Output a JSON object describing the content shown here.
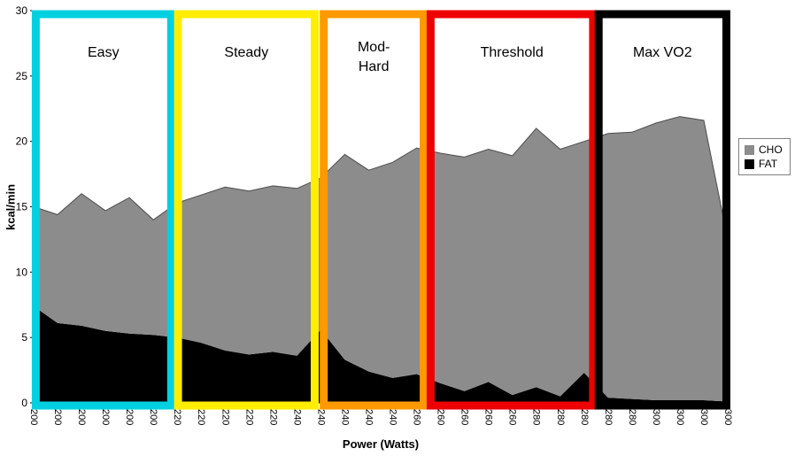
{
  "chart_data": {
    "type": "area",
    "stacked": true,
    "title": "",
    "xlabel": "Power (Watts)",
    "ylabel": "kcal/min",
    "ylim": [
      0,
      30
    ],
    "yticks": [
      0,
      5,
      10,
      15,
      20,
      25,
      30
    ],
    "grid": false,
    "categories": [
      "200",
      "200",
      "200",
      "200",
      "200",
      "200",
      "220",
      "220",
      "220",
      "220",
      "220",
      "240",
      "240",
      "240",
      "240",
      "240",
      "260",
      "260",
      "260",
      "260",
      "260",
      "280",
      "280",
      "280",
      "280",
      "280",
      "300",
      "300",
      "300",
      "300"
    ],
    "series": [
      {
        "name": "FAT",
        "color": "#000000",
        "values": [
          7.4,
          6.1,
          5.9,
          5.5,
          5.3,
          5.2,
          5.0,
          4.6,
          4.0,
          3.7,
          3.9,
          3.6,
          5.6,
          3.3,
          2.4,
          1.9,
          2.2,
          1.5,
          0.9,
          1.6,
          0.6,
          1.2,
          0.5,
          2.3,
          0.4,
          0.3,
          0.2,
          0.2,
          0.2,
          0.1
        ]
      },
      {
        "name": "CHO",
        "color": "#8c8c8c",
        "values": [
          7.6,
          8.3,
          10.1,
          9.2,
          10.4,
          8.8,
          10.3,
          11.3,
          12.5,
          12.5,
          12.7,
          12.8,
          11.6,
          15.7,
          15.4,
          16.5,
          17.3,
          17.6,
          17.9,
          17.8,
          18.3,
          19.8,
          18.9,
          17.7,
          20.2,
          20.4,
          21.2,
          21.7,
          21.4,
          12.4
        ]
      }
    ],
    "legend": {
      "position": "right",
      "items": [
        {
          "label": "CHO",
          "color": "#8c8c8c"
        },
        {
          "label": "FAT",
          "color": "#000000"
        }
      ]
    },
    "zones": [
      {
        "label": "Easy",
        "lines": [
          "Easy"
        ],
        "color": "#00d0e0",
        "x0": 0.003,
        "x1": 0.198
      },
      {
        "label": "Steady",
        "lines": [
          "Steady"
        ],
        "color": "#ffee00",
        "x0": 0.208,
        "x1": 0.405
      },
      {
        "label": "Mod-Hard",
        "lines": [
          "Mod-",
          "Hard"
        ],
        "color": "#ff9900",
        "x0": 0.418,
        "x1": 0.562
      },
      {
        "label": "Threshold",
        "lines": [
          "Threshold"
        ],
        "color": "#ee0000",
        "x0": 0.572,
        "x1": 0.806
      },
      {
        "label": "Max VO2",
        "lines": [
          "Max VO2"
        ],
        "color": "#000000",
        "x0": 0.814,
        "x1": 0.998
      }
    ],
    "outline_color": "#4d4d4d",
    "axis_color": "#000000"
  }
}
